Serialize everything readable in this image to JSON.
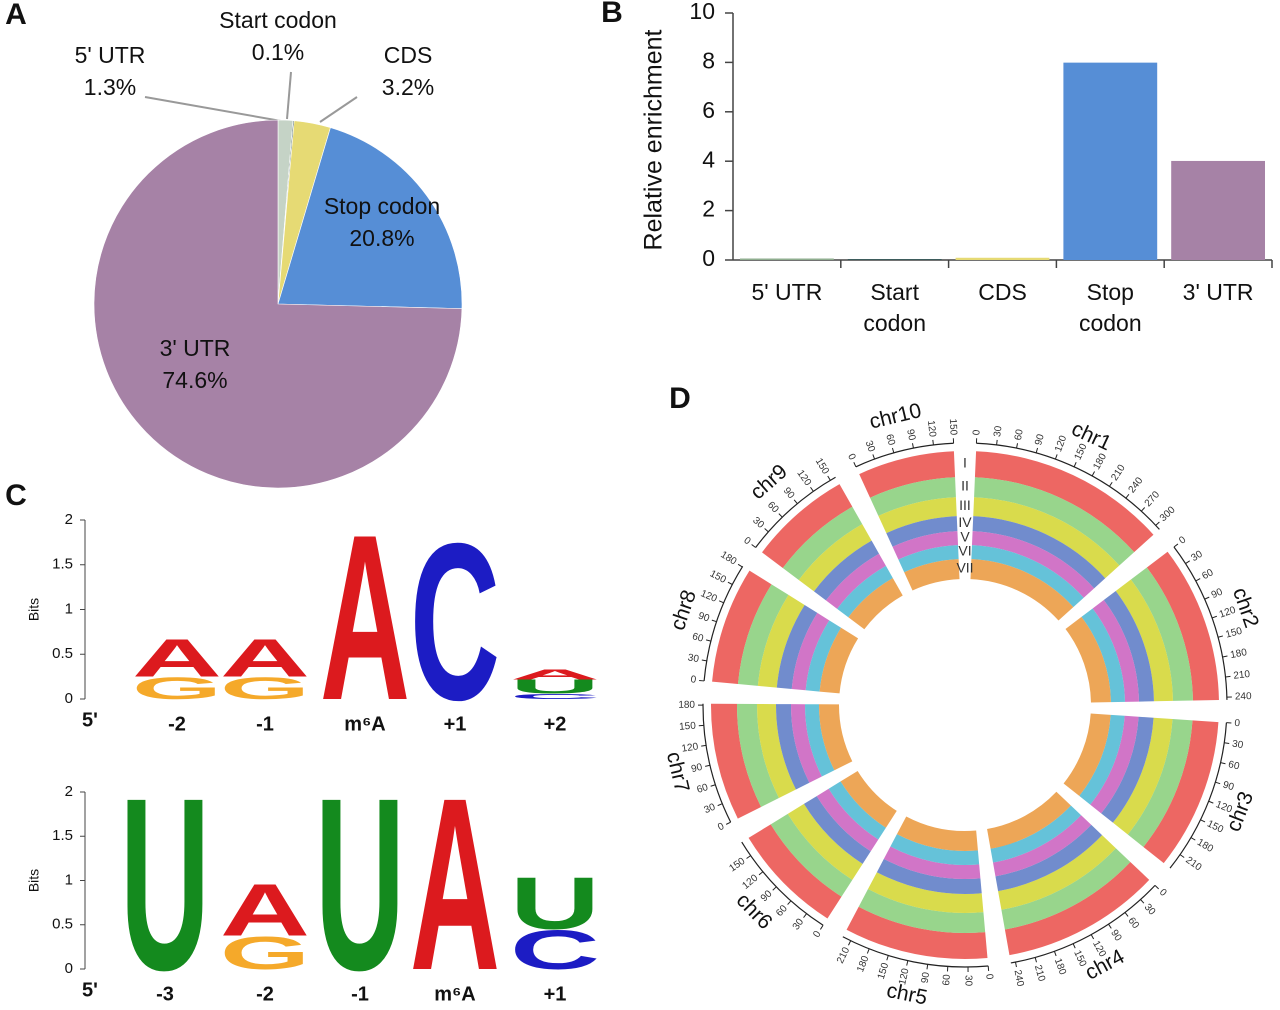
{
  "chart_data": [
    {
      "type": "pie",
      "panel": "A",
      "categories": [
        "5' UTR",
        "Start codon",
        "CDS",
        "Stop codon",
        "3' UTR"
      ],
      "values": [
        1.3,
        0.1,
        3.2,
        20.8,
        74.6
      ],
      "value_labels": [
        "1.3%",
        "0.1%",
        "3.2%",
        "20.8%",
        "74.6%"
      ],
      "colors": [
        "#c5d3c6",
        "#3d5c5c",
        "#e6da74",
        "#568ed6",
        "#a682a6"
      ]
    },
    {
      "type": "bar",
      "panel": "B",
      "y_label": "Relative enrichment",
      "categories": [
        "5' UTR",
        "Start codon",
        "CDS",
        "Stop codon",
        "3' UTR"
      ],
      "values": [
        0.02,
        0,
        0.05,
        7.95,
        3.97
      ],
      "colors": [
        "#8fae8f",
        "#3d5c5c",
        "#e6da74",
        "#568ed6",
        "#a682a6"
      ],
      "ylim": [
        0,
        10
      ],
      "yticks": [
        0,
        2,
        4,
        6,
        8,
        10
      ]
    },
    {
      "type": "logo",
      "panel": "C",
      "y_label": "Bits",
      "start_label": "5'",
      "categories": [
        "-2",
        "-1",
        "m⁶A",
        "+1",
        "+2"
      ],
      "series": [
        {
          "name": "C",
          "color": "#1c1cc4",
          "values": [
            null,
            null,
            null,
            1.8,
            0.06
          ]
        },
        {
          "name": "G",
          "color": "#f5a92a",
          "values": [
            0.25,
            0.25,
            null,
            null,
            null
          ]
        },
        {
          "name": "U",
          "color": "#148a1e",
          "values": [
            null,
            null,
            null,
            null,
            0.16
          ]
        },
        {
          "name": "A",
          "color": "#dc1a1e",
          "values": [
            0.43,
            0.43,
            1.9,
            null,
            0.12
          ]
        }
      ],
      "ylim": [
        0,
        2
      ],
      "yticks": [
        0,
        0.5,
        1,
        1.5,
        2
      ]
    },
    {
      "type": "logo",
      "y_label": "Bits",
      "start_label": "5'",
      "categories": [
        "-3",
        "-2",
        "-1",
        "m⁶A",
        "+1"
      ],
      "series": [
        {
          "name": "C",
          "color": "#1c1cc4",
          "values": [
            null,
            null,
            null,
            null,
            0.45
          ]
        },
        {
          "name": "G",
          "color": "#f5a92a",
          "values": [
            null,
            0.38,
            null,
            null,
            null
          ]
        },
        {
          "name": "U",
          "color": "#148a1e",
          "values": [
            2,
            null,
            2,
            null,
            0.6
          ]
        },
        {
          "name": "A",
          "color": "#dc1a1e",
          "values": [
            null,
            0.6,
            null,
            2,
            null
          ]
        }
      ],
      "ylim": [
        0,
        2
      ],
      "yticks": [
        0,
        0.5,
        1,
        1.5,
        2
      ]
    },
    {
      "type": "circos",
      "panel": "D",
      "track_labels": [
        "I",
        "II",
        "III",
        "IV",
        "V",
        "VI",
        "VII"
      ],
      "track_colors": [
        "#e8413c",
        "#7ecb6f",
        "#cfd21f",
        "#4e6fc0",
        "#c653b9",
        "#3fb3cf",
        "#e8902d"
      ],
      "chromosomes": [
        {
          "name": "chr1",
          "xlim": [
            0,
            308
          ],
          "xticks": [
            0,
            30,
            60,
            90,
            120,
            150,
            180,
            210,
            240,
            270,
            300
          ]
        },
        {
          "name": "chr2",
          "xlim": [
            0,
            244
          ],
          "xticks": [
            0,
            30,
            60,
            90,
            120,
            150,
            180,
            210,
            240
          ]
        },
        {
          "name": "chr3",
          "xlim": [
            0,
            235
          ],
          "xticks": [
            0,
            30,
            60,
            90,
            120,
            150,
            180,
            210
          ]
        },
        {
          "name": "chr4",
          "xlim": [
            0,
            247
          ],
          "xticks": [
            0,
            30,
            60,
            90,
            120,
            150,
            180,
            210,
            240
          ]
        },
        {
          "name": "chr5",
          "xlim": [
            0,
            223
          ],
          "xticks": [
            0,
            30,
            60,
            90,
            120,
            150,
            180,
            210
          ]
        },
        {
          "name": "chr6",
          "xlim": [
            0,
            174
          ],
          "xticks": [
            0,
            30,
            60,
            90,
            120,
            150
          ]
        },
        {
          "name": "chr7",
          "xlim": [
            0,
            182
          ],
          "xticks": [
            0,
            30,
            60,
            90,
            120,
            150,
            180
          ]
        },
        {
          "name": "chr8",
          "xlim": [
            0,
            181
          ],
          "xticks": [
            0,
            30,
            60,
            90,
            120,
            150,
            180
          ]
        },
        {
          "name": "chr9",
          "xlim": [
            0,
            159
          ],
          "xticks": [
            0,
            30,
            60,
            90,
            120,
            150
          ]
        },
        {
          "name": "chr10",
          "xlim": [
            0,
            150
          ],
          "xticks": [
            0,
            30,
            60,
            90,
            120,
            150
          ]
        }
      ]
    }
  ]
}
